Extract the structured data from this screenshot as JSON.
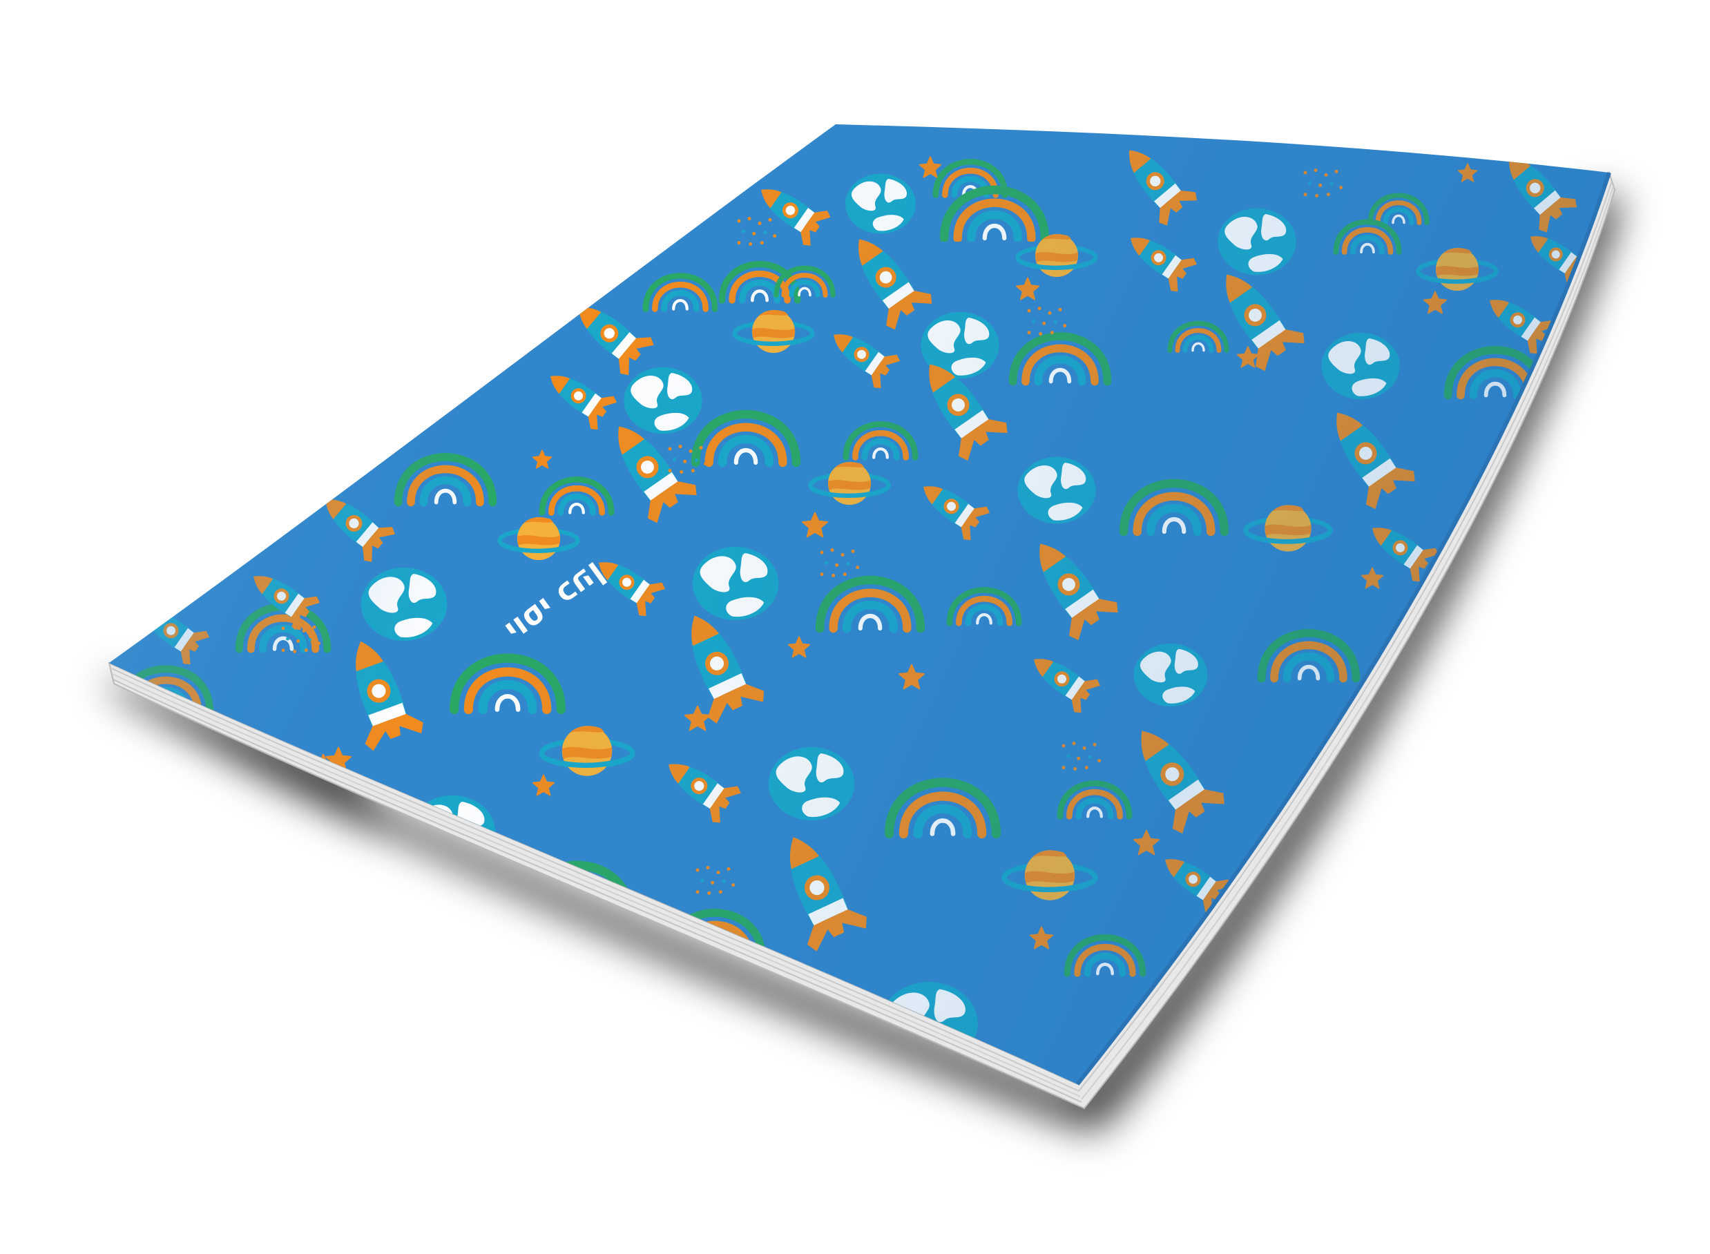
{
  "scene": {
    "description_kind": "notebook mockup",
    "cover_name": "יוסי כהן"
  },
  "colors": {
    "background": "#ffffff",
    "cover_blue": "#3286cb",
    "cover_blue_light": "#5da3dc",
    "orange": "#f28b1e",
    "orange_light": "#f6b23a",
    "teal": "#1aa7c9",
    "teal_dark": "#0f7fa8",
    "green": "#2aa864",
    "white": "#ffffff",
    "page_edge": "#dcdcdc",
    "shadow": "#1a1a1a"
  },
  "pattern": {
    "motifs": [
      "rocket-icon",
      "earth-icon",
      "planet-icon",
      "rainbow-icon",
      "star-icon",
      "dots"
    ]
  }
}
